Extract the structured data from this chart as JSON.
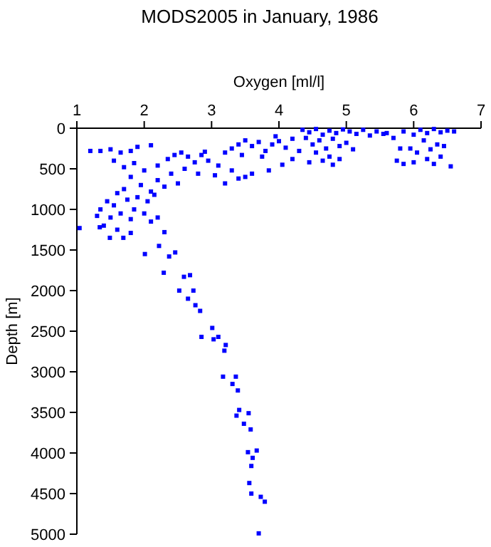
{
  "chart_data": {
    "type": "scatter",
    "title": "MODS2005 in January, 1986",
    "xlabel": "Oxygen [ml/l]",
    "ylabel": "Depth [m]",
    "xlim": [
      1,
      7
    ],
    "xticks": [
      1,
      2,
      3,
      4,
      5,
      6,
      7
    ],
    "ylim": [
      5000,
      0
    ],
    "yticks": [
      0,
      500,
      1000,
      1500,
      2000,
      2500,
      3000,
      3500,
      4000,
      4500,
      5000
    ],
    "grid": false,
    "marker": "square",
    "series": [
      {
        "color": "#0000ff",
        "x": [
          1.04,
          1.34,
          1.49,
          1.69,
          1.8,
          2.01,
          2.22,
          2.37,
          2.29,
          2.46,
          2.59,
          2.68,
          2.52,
          2.73,
          2.65,
          2.76,
          2.83,
          2.85,
          3.01,
          3.03,
          3.1,
          3.21,
          3.19,
          3.17,
          3.36,
          3.31,
          3.39,
          3.41,
          3.37,
          3.55,
          3.48,
          3.58,
          3.54,
          3.67,
          3.61,
          3.59,
          3.56,
          3.59,
          3.73,
          3.79,
          3.7,
          4.35,
          4.45,
          4.55,
          4.65,
          4.75,
          4.85,
          4.95,
          5.05,
          5.15,
          5.25,
          5.35,
          5.45,
          5.55,
          4.4,
          4.6,
          4.8,
          4.5,
          4.7,
          4.9,
          4.55,
          4.75,
          4.65,
          4.45,
          5.0,
          5.1,
          4.3,
          4.2,
          4.9,
          4.8,
          3.2,
          3.3,
          3.4,
          3.5,
          3.6,
          3.7,
          3.8,
          3.9,
          4.0,
          4.1,
          4.2,
          3.95,
          3.45,
          3.75,
          4.05,
          3.85,
          3.5,
          3.4,
          3.2,
          3.6,
          3.3,
          3.1,
          2.95,
          3.05,
          5.7,
          5.85,
          6.0,
          6.1,
          6.2,
          6.3,
          6.4,
          6.5,
          6.6,
          6.15,
          6.35,
          6.25,
          6.45,
          6.05,
          5.95,
          5.75,
          5.85,
          6.0,
          6.2,
          6.4,
          6.55,
          6.3,
          5.6,
          5.8,
          1.2,
          1.35,
          1.5,
          1.65,
          1.8,
          1.9,
          2.1,
          1.55,
          1.7,
          1.85,
          2.0,
          2.2,
          2.35,
          2.45,
          2.55,
          2.65,
          2.75,
          2.85,
          2.9,
          2.6,
          2.4,
          2.8,
          2.2,
          2.5,
          1.8,
          1.95,
          2.1,
          2.3,
          1.7,
          1.6,
          1.45,
          1.55,
          1.75,
          1.9,
          2.05,
          2.15,
          1.35,
          1.5,
          1.65,
          1.85,
          2.0,
          2.1,
          1.3,
          1.4,
          1.6,
          2.2,
          2.3,
          1.8
        ],
        "values": [
          1230,
          1220,
          1350,
          1350,
          1290,
          1550,
          1450,
          1580,
          1780,
          1530,
          1830,
          1810,
          2000,
          2000,
          2100,
          2180,
          2250,
          2570,
          2460,
          2600,
          2570,
          2670,
          2740,
          3060,
          3060,
          3150,
          3230,
          3470,
          3540,
          3510,
          3640,
          3710,
          3990,
          3970,
          4060,
          4160,
          4370,
          4500,
          4540,
          4600,
          4990,
          20,
          50,
          10,
          80,
          30,
          60,
          15,
          40,
          70,
          20,
          90,
          40,
          70,
          120,
          150,
          130,
          200,
          250,
          220,
          300,
          350,
          400,
          420,
          180,
          260,
          280,
          380,
          380,
          450,
          300,
          250,
          200,
          150,
          220,
          170,
          280,
          200,
          160,
          240,
          130,
          100,
          330,
          350,
          450,
          520,
          600,
          620,
          680,
          560,
          520,
          460,
          400,
          580,
          120,
          40,
          80,
          20,
          60,
          10,
          50,
          30,
          40,
          150,
          200,
          260,
          220,
          300,
          250,
          400,
          440,
          420,
          380,
          350,
          470,
          440,
          60,
          250,
          280,
          280,
          260,
          300,
          280,
          230,
          210,
          400,
          480,
          430,
          520,
          460,
          380,
          330,
          300,
          350,
          420,
          330,
          290,
          500,
          560,
          560,
          640,
          680,
          600,
          700,
          780,
          720,
          750,
          800,
          900,
          950,
          880,
          850,
          900,
          820,
          1000,
          1100,
          1050,
          1000,
          1050,
          1150,
          1080,
          1200,
          1250,
          1100,
          1280,
          1120
        ]
      }
    ]
  }
}
